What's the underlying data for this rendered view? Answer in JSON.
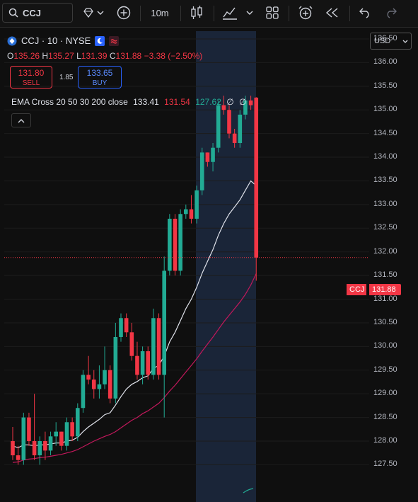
{
  "toolbar": {
    "symbol": "CCJ",
    "interval": "10m"
  },
  "legend": {
    "symbol_line": "CCJ · 10 · NYSE",
    "o_label": "O",
    "o": "135.26",
    "h_label": "H",
    "h": "135.27",
    "l_label": "L",
    "l": "131.39",
    "c_label": "C",
    "c": "131.88",
    "change": "−3.38 (−2.50%)"
  },
  "trade": {
    "sell_price": "131.80",
    "sell_label": "SELL",
    "spread": "1.85",
    "buy_price": "133.65",
    "buy_label": "BUY"
  },
  "indicator": {
    "name": "EMA Cross 20 50 30 200 close",
    "v1": "133.41",
    "v2": "131.54",
    "v3": "127.62",
    "v4": "∅",
    "v5": "∅"
  },
  "currency": "USD",
  "price_tag": {
    "symbol": "CCJ",
    "price": "131.88"
  },
  "colors": {
    "up": "#22ab94",
    "down": "#f23645",
    "ema_fast": "#e0e3eb",
    "ema_slow": "#c2185b",
    "ema_long": "#22ab94",
    "highlight": "#1a2538"
  },
  "chart_data": {
    "type": "candlestick",
    "y_ticks": [
      "136.50",
      "136.00",
      "135.50",
      "135.00",
      "134.50",
      "134.00",
      "133.50",
      "133.00",
      "132.50",
      "132.00",
      "131.50",
      "131.00",
      "130.50",
      "130.00",
      "129.50",
      "129.00",
      "128.50",
      "128.00",
      "127.50"
    ],
    "ylim": [
      127.5,
      136.8
    ],
    "candles": [
      [
        128.0,
        128.3,
        127.6,
        127.7
      ],
      [
        127.7,
        127.9,
        127.5,
        127.6
      ],
      [
        127.6,
        128.6,
        127.5,
        128.5
      ],
      [
        128.5,
        128.6,
        127.9,
        128.0
      ],
      [
        128.0,
        129.0,
        127.6,
        127.7
      ],
      [
        127.7,
        128.1,
        127.5,
        128.0
      ],
      [
        128.0,
        128.2,
        127.6,
        127.8
      ],
      [
        127.8,
        128.2,
        127.7,
        128.1
      ],
      [
        128.1,
        128.4,
        127.9,
        128.2
      ],
      [
        128.2,
        128.2,
        127.8,
        127.9
      ],
      [
        127.9,
        128.5,
        127.8,
        128.4
      ],
      [
        128.4,
        128.5,
        128.0,
        128.1
      ],
      [
        128.1,
        128.8,
        128.0,
        128.7
      ],
      [
        128.7,
        129.5,
        128.6,
        129.4
      ],
      [
        129.4,
        129.8,
        129.2,
        129.3
      ],
      [
        129.3,
        129.5,
        128.9,
        129.1
      ],
      [
        129.1,
        129.6,
        128.9,
        129.2
      ],
      [
        129.2,
        130.0,
        129.1,
        129.5
      ],
      [
        129.5,
        129.6,
        128.8,
        128.9
      ],
      [
        128.9,
        130.5,
        128.8,
        130.2
      ],
      [
        130.2,
        130.7,
        130.1,
        130.6
      ],
      [
        130.6,
        130.7,
        130.2,
        130.3
      ],
      [
        130.3,
        130.5,
        129.7,
        129.8
      ],
      [
        129.8,
        130.1,
        129.3,
        129.4
      ],
      [
        129.4,
        130.0,
        129.2,
        129.9
      ],
      [
        129.9,
        130.0,
        129.3,
        129.4
      ],
      [
        129.4,
        130.8,
        129.3,
        130.6
      ],
      [
        130.6,
        130.7,
        129.3,
        129.4
      ],
      [
        129.4,
        131.9,
        128.5,
        131.6
      ],
      [
        131.6,
        132.8,
        131.5,
        132.7
      ],
      [
        132.7,
        132.8,
        131.5,
        131.6
      ],
      [
        131.6,
        132.9,
        131.5,
        132.8
      ],
      [
        132.8,
        133.0,
        132.7,
        132.9
      ],
      [
        132.9,
        133.2,
        132.6,
        132.7
      ],
      [
        132.7,
        133.4,
        132.6,
        133.3
      ],
      [
        133.3,
        134.2,
        133.2,
        134.1
      ],
      [
        134.1,
        134.1,
        133.8,
        133.9
      ],
      [
        133.9,
        134.3,
        133.7,
        134.2
      ],
      [
        134.2,
        135.2,
        134.1,
        135.1
      ],
      [
        135.1,
        135.3,
        134.9,
        135.0
      ],
      [
        135.0,
        135.1,
        134.4,
        134.5
      ],
      [
        134.5,
        134.6,
        134.2,
        134.3
      ],
      [
        134.3,
        135.0,
        134.2,
        134.9
      ],
      [
        134.9,
        135.3,
        134.8,
        135.2
      ],
      [
        135.2,
        135.3,
        135.0,
        135.1
      ],
      [
        135.26,
        135.27,
        131.39,
        131.88
      ]
    ],
    "ema20": [
      127.9,
      127.86,
      127.92,
      127.92,
      127.9,
      127.92,
      127.92,
      127.94,
      127.96,
      127.96,
      128.0,
      128.02,
      128.08,
      128.2,
      128.3,
      128.38,
      128.46,
      128.56,
      128.6,
      128.76,
      128.94,
      129.1,
      129.2,
      129.26,
      129.34,
      129.38,
      129.54,
      129.6,
      129.8,
      130.1,
      130.3,
      130.55,
      130.8,
      131.0,
      131.25,
      131.55,
      131.8,
      132.05,
      132.35,
      132.6,
      132.8,
      132.95,
      133.1,
      133.3,
      133.5,
      133.4
    ],
    "ema50": [
      127.55,
      127.56,
      127.6,
      127.62,
      127.63,
      127.65,
      127.66,
      127.68,
      127.7,
      127.72,
      127.75,
      127.78,
      127.82,
      127.88,
      127.94,
      128.0,
      128.05,
      128.1,
      128.14,
      128.2,
      128.28,
      128.36,
      128.44,
      128.5,
      128.58,
      128.64,
      128.72,
      128.8,
      128.92,
      129.06,
      129.18,
      129.32,
      129.46,
      129.6,
      129.74,
      129.9,
      130.05,
      130.2,
      130.36,
      130.52,
      130.66,
      130.8,
      130.94,
      131.1,
      131.3,
      131.54
    ]
  }
}
